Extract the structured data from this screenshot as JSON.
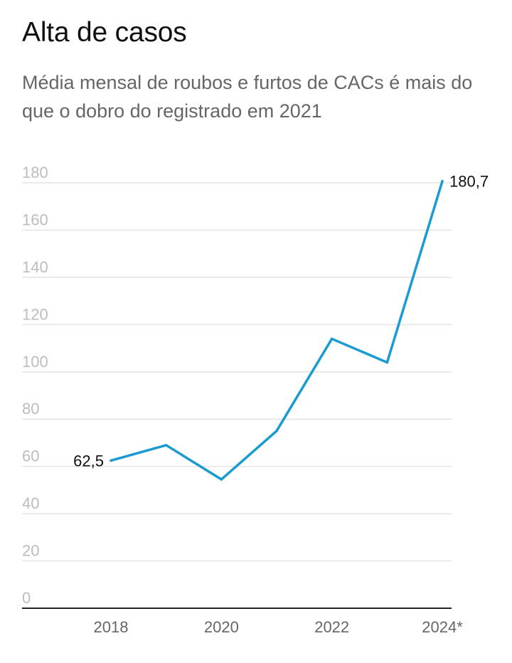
{
  "header": {
    "title": "Alta de casos",
    "subtitle": "Média mensal de roubos e furtos de CACs é mais do que o dobro do registrado em 2021"
  },
  "colors": {
    "line": "#1b9bd1",
    "grid": "#e3e3e3",
    "axis": "#222222",
    "ytick": "#bdbdbd",
    "xtick": "#666666"
  },
  "chart_data": {
    "type": "line",
    "x": [
      2018,
      2019,
      2020,
      2021,
      2022,
      2023,
      2024
    ],
    "series": [
      {
        "values": [
          62.5,
          69,
          54.5,
          75,
          114,
          104,
          180.7
        ]
      }
    ],
    "x_tick_labels": [
      {
        "x": 2018,
        "label": "2018"
      },
      {
        "x": 2020,
        "label": "2020"
      },
      {
        "x": 2022,
        "label": "2022"
      },
      {
        "x": 2024,
        "label": "2024*"
      }
    ],
    "y_ticks": [
      0,
      20,
      40,
      60,
      80,
      100,
      120,
      140,
      160,
      180
    ],
    "y_tick_labels": [
      "0",
      "20",
      "40",
      "60",
      "80",
      "100",
      "120",
      "140",
      "160",
      "180"
    ],
    "ylim": [
      0,
      180
    ],
    "xlim": [
      2017,
      2024.2
    ],
    "grid": true,
    "data_labels": [
      {
        "x": 2018,
        "y": 62.5,
        "label": "62,5",
        "side": "left"
      },
      {
        "x": 2024,
        "y": 180.7,
        "label": "180,7",
        "side": "right"
      }
    ]
  }
}
